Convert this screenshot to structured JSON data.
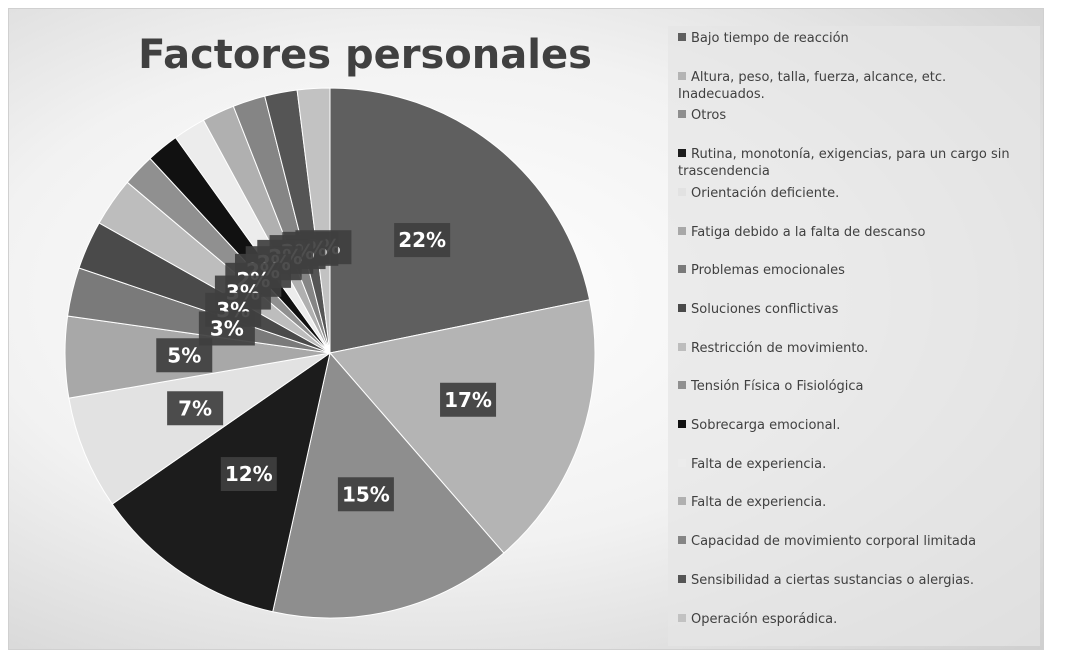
{
  "chart_data": {
    "type": "pie",
    "title": "Factores personales",
    "categories": [
      "Bajo tiempo de reacción",
      "Altura, peso, talla, fuerza, alcance, etc. Inadecuados.",
      "Otros",
      "Rutina, monotonía, exigencias, para un cargo sin trascendencia",
      "Orientación deficiente.",
      "Fatiga debido a la falta de descanso",
      "Problemas emocionales",
      "Soluciones conflictivas",
      "Restricción de movimiento.",
      "Tensión Física o Fisiológica",
      "Sobrecarga emocional.",
      "Falta de experiencia.",
      "Falta de experiencia.",
      "Capacidad de movimiento corporal limitada",
      "Sensibilidad a ciertas sustancias o alergias.",
      "Operación esporádica."
    ],
    "values": [
      22,
      17,
      15,
      12,
      7,
      5,
      3,
      3,
      3,
      2,
      2,
      2,
      2,
      2,
      2,
      2
    ],
    "value_labels": [
      "22%",
      "17%",
      "15%",
      "12%",
      "7%",
      "5%",
      "3%",
      "3%",
      "3%",
      "2%",
      "2%",
      "2%",
      "2%",
      "2%",
      "2%",
      "2%"
    ],
    "colors": [
      "#5f5f5f",
      "#b4b4b4",
      "#8e8e8e",
      "#1c1c1c",
      "#e2e2e2",
      "#a8a8a8",
      "#7a7a7a",
      "#4a4a4a",
      "#bdbdbd",
      "#909090",
      "#111111",
      "#ececec",
      "#b0b0b0",
      "#858585",
      "#555555",
      "#c2c2c2"
    ],
    "legend": "right"
  }
}
